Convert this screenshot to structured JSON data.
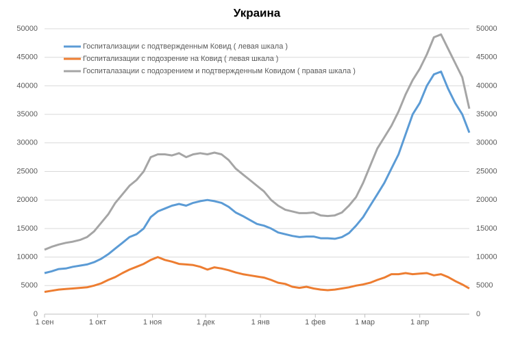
{
  "chart_data": {
    "type": "line",
    "title": "Украина",
    "x": [
      0,
      4,
      8,
      12,
      16,
      20,
      24,
      28,
      32,
      36,
      40,
      44,
      48,
      52,
      56,
      60,
      64,
      68,
      72,
      76,
      80,
      84,
      88,
      92,
      96,
      100,
      104,
      108,
      112,
      116,
      120,
      124,
      128,
      132,
      136,
      140,
      144,
      148,
      152,
      156,
      160,
      164,
      168,
      172,
      176,
      180,
      184,
      188,
      192,
      196,
      200,
      204,
      208,
      212,
      216,
      220,
      224,
      228,
      232,
      236,
      240
    ],
    "xlim": [
      0,
      240
    ],
    "xticks": [
      {
        "value": 0,
        "label": "1 сен"
      },
      {
        "value": 30,
        "label": "1 окт"
      },
      {
        "value": 61,
        "label": "1 ноя"
      },
      {
        "value": 91,
        "label": "1 дек"
      },
      {
        "value": 122,
        "label": "1 янв"
      },
      {
        "value": 153,
        "label": "1 фев"
      },
      {
        "value": 181,
        "label": "1 мар"
      },
      {
        "value": 212,
        "label": "1 апр"
      }
    ],
    "ylim": [
      0,
      50000
    ],
    "yticks": [
      0,
      5000,
      10000,
      15000,
      20000,
      25000,
      30000,
      35000,
      40000,
      45000,
      50000
    ],
    "y2lim": [
      0,
      50000
    ],
    "y2ticks": [
      0,
      5000,
      10000,
      15000,
      20000,
      25000,
      30000,
      35000,
      40000,
      45000,
      50000
    ],
    "grid": true,
    "legend": "top-left",
    "series": [
      {
        "name": "Госпитализации с подтвержденным Ковид ( левая шкала )",
        "color": "#5b9bd5",
        "values": [
          7200,
          7500,
          7900,
          8000,
          8300,
          8500,
          8700,
          9100,
          9700,
          10500,
          11500,
          12500,
          13500,
          14000,
          15000,
          17000,
          18000,
          18500,
          19000,
          19300,
          19000,
          19500,
          19800,
          20000,
          19800,
          19500,
          18800,
          17800,
          17200,
          16500,
          15800,
          15500,
          15000,
          14300,
          14000,
          13700,
          13500,
          13600,
          13600,
          13300,
          13300,
          13200,
          13500,
          14200,
          15500,
          17000,
          19000,
          21000,
          23000,
          25500,
          28000,
          31500,
          35000,
          37000,
          40000,
          42000,
          42500,
          39500,
          37000,
          35000,
          31800
        ]
      },
      {
        "name": "Госпитализации с подозрение на Ковид ( левая шкала )",
        "color": "#ed7d31",
        "values": [
          3900,
          4100,
          4300,
          4400,
          4500,
          4600,
          4700,
          5000,
          5400,
          6000,
          6500,
          7200,
          7800,
          8300,
          8800,
          9500,
          10000,
          9500,
          9200,
          8800,
          8700,
          8600,
          8300,
          7800,
          8200,
          8000,
          7700,
          7300,
          7000,
          6800,
          6600,
          6400,
          6000,
          5500,
          5300,
          4800,
          4600,
          4800,
          4500,
          4300,
          4200,
          4300,
          4500,
          4700,
          5000,
          5200,
          5500,
          6000,
          6400,
          7000,
          7000,
          7200,
          7000,
          7100,
          7200,
          6800,
          7000,
          6500,
          5800,
          5200,
          4500
        ]
      },
      {
        "name": "Госпиталазации с подозрением и подтвержденным Ковидом ( правая шкала )",
        "color": "#a5a5a5",
        "axis": "y2",
        "values": [
          11300,
          11800,
          12200,
          12500,
          12700,
          13000,
          13500,
          14500,
          16000,
          17500,
          19500,
          21000,
          22500,
          23500,
          25000,
          27500,
          28000,
          28000,
          27800,
          28200,
          27500,
          28000,
          28200,
          28000,
          28300,
          28000,
          27000,
          25500,
          24500,
          23500,
          22500,
          21500,
          20000,
          19000,
          18300,
          18000,
          17700,
          17700,
          17800,
          17300,
          17200,
          17300,
          17800,
          19000,
          20500,
          23000,
          26000,
          29000,
          31000,
          33000,
          35500,
          38500,
          41000,
          43000,
          45500,
          48500,
          49000,
          46500,
          44000,
          41500,
          36000
        ]
      }
    ]
  }
}
